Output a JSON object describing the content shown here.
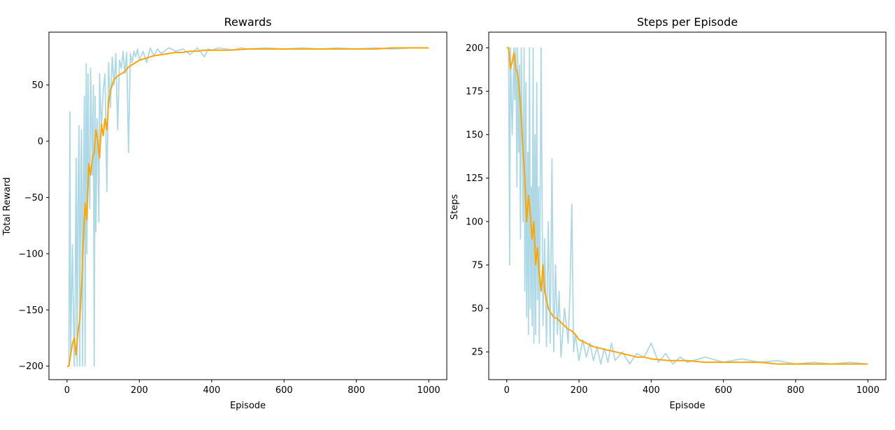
{
  "chart_data": [
    {
      "type": "line",
      "title": "Rewards",
      "xlabel": "Episode",
      "ylabel": "Total Reward",
      "xlim": [
        -50,
        1050
      ],
      "ylim": [
        -212,
        97
      ],
      "xticks": [
        0,
        200,
        400,
        600,
        800,
        1000
      ],
      "xtick_labels": [
        "0",
        "200",
        "400",
        "600",
        "800",
        "1000"
      ],
      "yticks": [
        -200,
        -150,
        -100,
        -50,
        0,
        50
      ],
      "ytick_labels": [
        "−200",
        "−150",
        "−100",
        "−50",
        "0",
        "50"
      ],
      "grid": false,
      "series": [
        {
          "color": "#add8e6",
          "x": [
            0,
            5,
            8,
            10,
            15,
            20,
            22,
            25,
            28,
            30,
            33,
            35,
            38,
            40,
            43,
            45,
            48,
            50,
            53,
            55,
            58,
            60,
            63,
            65,
            68,
            70,
            73,
            75,
            78,
            80,
            83,
            85,
            88,
            90,
            95,
            100,
            105,
            110,
            115,
            120,
            125,
            130,
            135,
            140,
            145,
            150,
            155,
            160,
            165,
            170,
            175,
            180,
            185,
            190,
            195,
            200,
            210,
            220,
            230,
            240,
            250,
            260,
            270,
            280,
            290,
            300,
            320,
            340,
            360,
            380,
            390,
            400,
            420,
            440,
            460,
            480,
            500,
            550,
            600,
            650,
            700,
            750,
            800,
            850,
            900,
            950,
            1000
          ],
          "y": [
            -200,
            -200,
            26,
            -190,
            -92,
            -200,
            -170,
            -15,
            -200,
            -60,
            14,
            -200,
            -30,
            10,
            -200,
            -50,
            40,
            -200,
            69,
            -100,
            60,
            -10,
            -60,
            65,
            15,
            -30,
            50,
            -200,
            40,
            -80,
            20,
            5,
            -72,
            60,
            10,
            45,
            60,
            -45,
            70,
            30,
            75,
            50,
            78,
            10,
            72,
            65,
            80,
            60,
            79,
            -10,
            78,
            70,
            80,
            75,
            82,
            72,
            80,
            70,
            83,
            76,
            82,
            78,
            80,
            83,
            82,
            80,
            82,
            77,
            83,
            75,
            82,
            81,
            83,
            82,
            81,
            83,
            82,
            83,
            82,
            83,
            82,
            83,
            82,
            83,
            82,
            83,
            83
          ]
        },
        {
          "color": "#ffa500",
          "x": [
            0,
            5,
            10,
            15,
            20,
            25,
            30,
            35,
            40,
            45,
            50,
            55,
            60,
            65,
            70,
            75,
            80,
            85,
            90,
            95,
            100,
            105,
            110,
            115,
            120,
            125,
            130,
            140,
            150,
            160,
            170,
            180,
            190,
            200,
            220,
            240,
            260,
            280,
            300,
            320,
            340,
            360,
            380,
            400,
            450,
            500,
            550,
            600,
            650,
            700,
            750,
            800,
            850,
            900,
            950,
            1000
          ],
          "y": [
            -200,
            -200,
            -190,
            -180,
            -175,
            -190,
            -170,
            -160,
            -130,
            -90,
            -55,
            -70,
            -20,
            -30,
            -15,
            -10,
            10,
            0,
            -15,
            15,
            5,
            20,
            10,
            35,
            45,
            50,
            55,
            58,
            60,
            62,
            66,
            68,
            70,
            72,
            74,
            76,
            77,
            78,
            79,
            79,
            80,
            80,
            81,
            81,
            81,
            82,
            82,
            82,
            82,
            82,
            82,
            82,
            82,
            83,
            83,
            83
          ]
        }
      ]
    },
    {
      "type": "line",
      "title": "Steps per Episode",
      "xlabel": "Episode",
      "ylabel": "Steps",
      "xlim": [
        -50,
        1050
      ],
      "ylim": [
        9,
        209
      ],
      "xticks": [
        0,
        200,
        400,
        600,
        800,
        1000
      ],
      "xtick_labels": [
        "0",
        "200",
        "400",
        "600",
        "800",
        "1000"
      ],
      "yticks": [
        25,
        50,
        75,
        100,
        125,
        150,
        175,
        200
      ],
      "ytick_labels": [
        "25",
        "50",
        "75",
        "100",
        "125",
        "150",
        "175",
        "200"
      ],
      "grid": false,
      "series": [
        {
          "color": "#add8e6",
          "x": [
            0,
            5,
            8,
            10,
            15,
            20,
            22,
            25,
            28,
            30,
            33,
            35,
            38,
            40,
            43,
            45,
            48,
            50,
            53,
            55,
            58,
            60,
            63,
            65,
            68,
            70,
            73,
            75,
            78,
            80,
            83,
            85,
            88,
            90,
            95,
            100,
            105,
            110,
            115,
            120,
            125,
            130,
            135,
            140,
            145,
            150,
            160,
            170,
            175,
            180,
            185,
            190,
            200,
            210,
            220,
            230,
            240,
            250,
            260,
            270,
            280,
            290,
            300,
            320,
            340,
            360,
            380,
            400,
            420,
            440,
            460,
            480,
            500,
            550,
            600,
            650,
            700,
            750,
            800,
            850,
            900,
            950,
            1000
          ],
          "y": [
            200,
            200,
            75,
            200,
            150,
            200,
            170,
            200,
            120,
            200,
            140,
            190,
            90,
            200,
            150,
            100,
            200,
            60,
            180,
            45,
            140,
            35,
            200,
            50,
            120,
            40,
            200,
            30,
            150,
            35,
            180,
            55,
            120,
            30,
            200,
            40,
            90,
            28,
            100,
            30,
            136,
            25,
            75,
            35,
            60,
            22,
            50,
            30,
            60,
            110,
            25,
            35,
            20,
            32,
            22,
            30,
            20,
            28,
            18,
            27,
            19,
            30,
            20,
            25,
            18,
            24,
            22,
            30,
            19,
            24,
            18,
            22,
            19,
            22,
            19,
            21,
            19,
            20,
            18,
            19,
            18,
            19,
            18
          ]
        },
        {
          "color": "#ffa500",
          "x": [
            0,
            5,
            10,
            15,
            20,
            25,
            30,
            35,
            40,
            45,
            50,
            55,
            60,
            65,
            70,
            75,
            80,
            85,
            90,
            95,
            100,
            105,
            110,
            115,
            120,
            130,
            140,
            150,
            160,
            170,
            180,
            190,
            200,
            220,
            240,
            260,
            280,
            300,
            320,
            340,
            360,
            380,
            400,
            450,
            500,
            550,
            600,
            650,
            700,
            750,
            800,
            850,
            900,
            950,
            1000
          ],
          "y": [
            200,
            200,
            188,
            192,
            197,
            188,
            185,
            175,
            160,
            140,
            125,
            100,
            115,
            105,
            90,
            100,
            75,
            85,
            70,
            60,
            75,
            60,
            55,
            50,
            48,
            45,
            44,
            42,
            40,
            38,
            37,
            35,
            32,
            30,
            28,
            27,
            26,
            25,
            24,
            23,
            22,
            22,
            21,
            20,
            20,
            19,
            19,
            19,
            19,
            18,
            18,
            18,
            18,
            18,
            18
          ]
        }
      ]
    }
  ]
}
